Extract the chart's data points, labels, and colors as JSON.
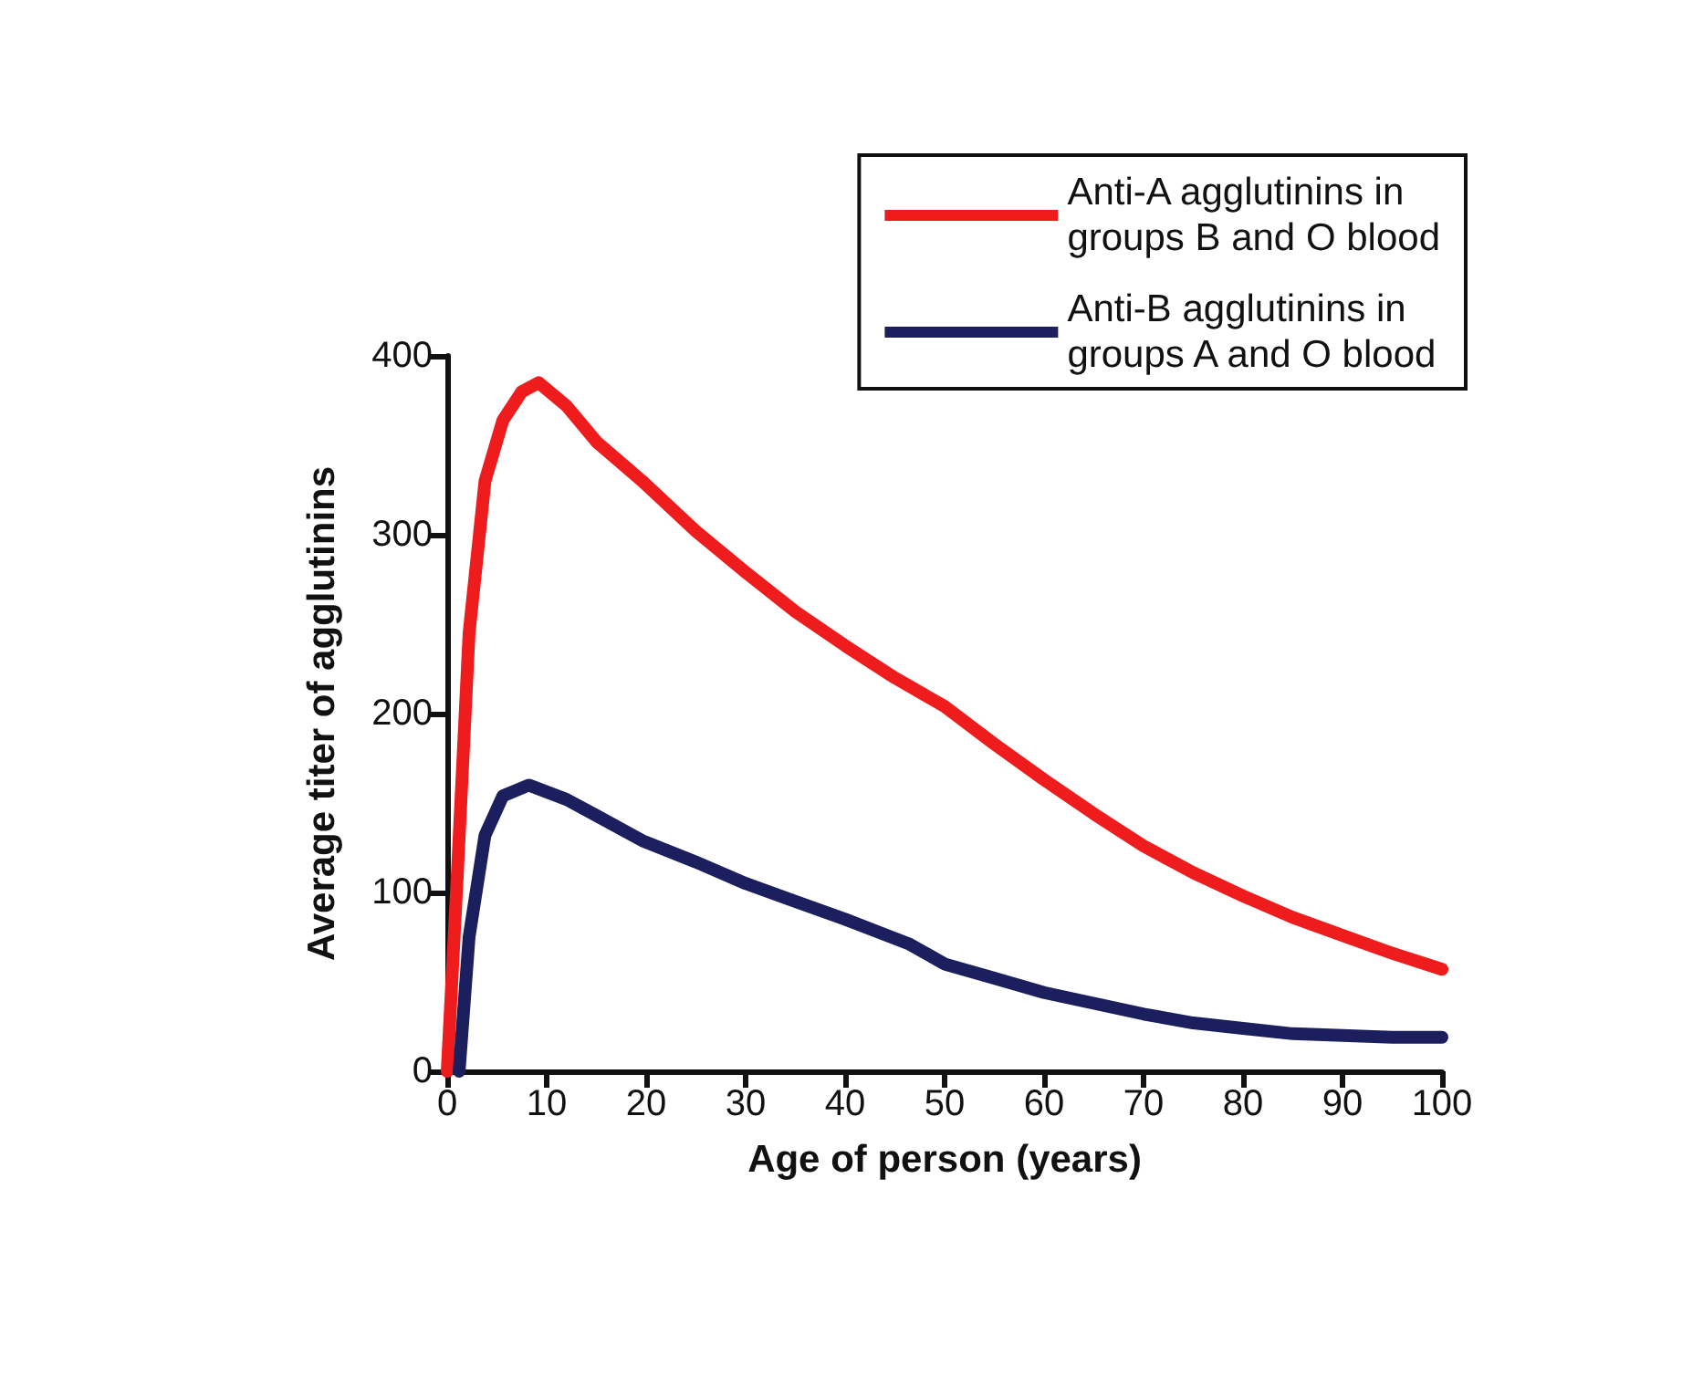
{
  "chart_data": {
    "type": "line",
    "xlabel": "Age of person (years)",
    "ylabel": "Average titer of agglutinins",
    "xlim": [
      0,
      100
    ],
    "xticks": [
      0,
      10,
      20,
      30,
      40,
      50,
      60,
      70,
      80,
      90,
      100
    ],
    "ylim": [
      0,
      400
    ],
    "yticks": [
      0,
      100,
      200,
      300,
      400
    ],
    "grid": false,
    "legend": "top right",
    "line_style": "solid",
    "series": [
      {
        "name": "Anti-A agglutinins in\ngroups B and O blood",
        "color": "#ee1c1c",
        "x": [
          0,
          1,
          2.2,
          3.8,
          5.6,
          7.5,
          9.2,
          12,
          15,
          19.6,
          25,
          30,
          35,
          40,
          45,
          50,
          55,
          60,
          65,
          70,
          75,
          80,
          85,
          90,
          95,
          100
        ],
        "values": [
          0,
          108,
          245,
          330,
          364,
          380,
          385,
          372,
          352,
          330,
          302,
          279,
          257,
          238,
          220,
          204,
          183,
          163,
          144,
          126,
          111,
          98,
          86,
          76,
          66,
          57
        ]
      },
      {
        "name": "Anti-B agglutinins in\ngroups A and O blood",
        "color": "#1b1f5e",
        "x": [
          1.2,
          2.2,
          3.8,
          5.6,
          8.2,
          12,
          15,
          19.6,
          25,
          30,
          35,
          40,
          46.5,
          50,
          55,
          60,
          65,
          70,
          75,
          80,
          85,
          90,
          95,
          100
        ],
        "values": [
          0,
          75,
          132,
          154,
          160,
          152,
          143,
          129,
          117,
          105,
          95,
          85,
          71,
          60,
          52,
          44,
          38,
          32,
          27,
          24,
          21,
          20,
          19,
          19
        ]
      }
    ]
  }
}
